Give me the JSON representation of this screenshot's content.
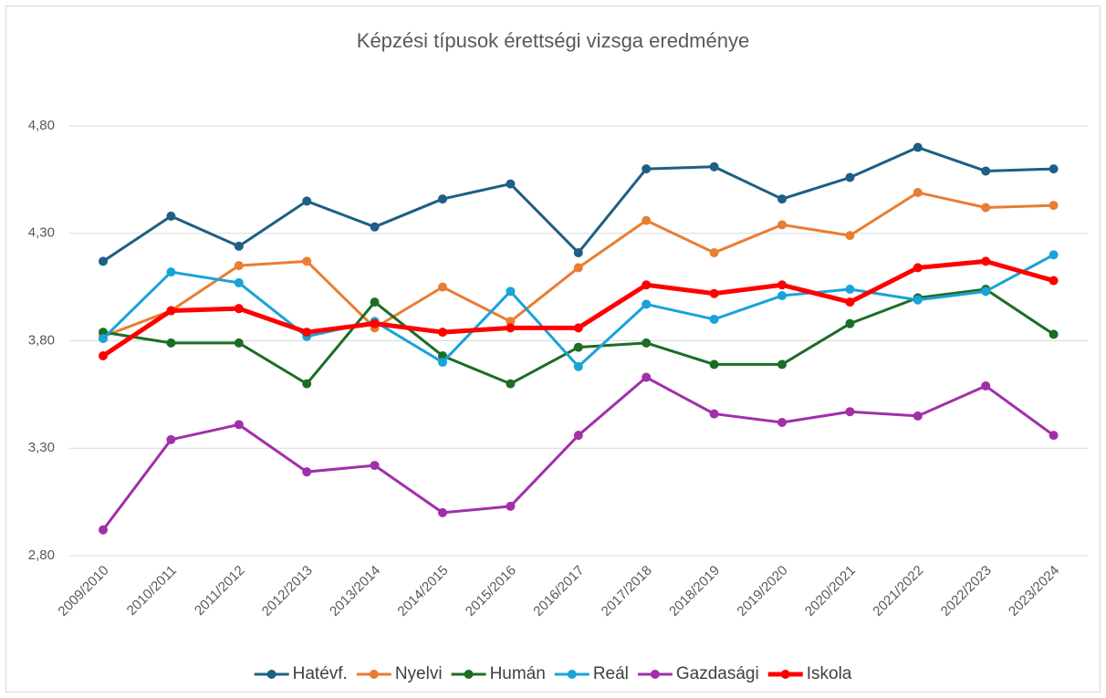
{
  "chart_data": {
    "type": "line",
    "title": "Képzési típusok érettségi vizsga eredménye",
    "categories": [
      "2009/2010",
      "2010/2011",
      "2011/2012",
      "2012/2013",
      "2013/2014",
      "2014/2015",
      "2015/2016",
      "2016/2017",
      "2017/2018",
      "2018/2019",
      "2019/2020",
      "2020/2021",
      "2021/2022",
      "2022/2023",
      "2023/2024"
    ],
    "series": [
      {
        "name": "Hatévf.",
        "color": "#1d5f85",
        "width": 3,
        "values": [
          4.17,
          4.38,
          4.24,
          4.45,
          4.33,
          4.46,
          4.53,
          4.21,
          4.6,
          4.61,
          4.46,
          4.56,
          4.7,
          4.59,
          4.6
        ]
      },
      {
        "name": "Nyelvi",
        "color": "#e97d32",
        "width": 3,
        "values": [
          3.82,
          3.94,
          4.15,
          4.17,
          3.86,
          4.05,
          3.89,
          4.14,
          4.36,
          4.21,
          4.34,
          4.29,
          4.49,
          4.42,
          4.43
        ]
      },
      {
        "name": "Humán",
        "color": "#1c6d26",
        "width": 3,
        "values": [
          3.84,
          3.79,
          3.79,
          3.6,
          3.98,
          3.73,
          3.6,
          3.77,
          3.79,
          3.69,
          3.69,
          3.88,
          4.0,
          4.04,
          3.83
        ]
      },
      {
        "name": "Reál",
        "color": "#19a3d9",
        "width": 3,
        "values": [
          3.81,
          4.12,
          4.07,
          3.82,
          3.89,
          3.7,
          4.03,
          3.68,
          3.97,
          3.9,
          4.01,
          4.04,
          3.99,
          4.03,
          4.2
        ]
      },
      {
        "name": "Gazdasági",
        "color": "#a12fa9",
        "width": 3,
        "values": [
          2.92,
          3.34,
          3.41,
          3.19,
          3.22,
          3.0,
          3.03,
          3.36,
          3.63,
          3.46,
          3.42,
          3.47,
          3.45,
          3.59,
          3.36
        ]
      },
      {
        "name": "Iskola",
        "color": "#ff0000",
        "width": 5,
        "values": [
          3.73,
          3.94,
          3.95,
          3.84,
          3.88,
          3.84,
          3.86,
          3.86,
          4.06,
          4.02,
          4.06,
          3.98,
          4.14,
          4.17,
          4.08
        ]
      }
    ],
    "ylim": [
      2.8,
      4.8
    ],
    "yticks": [
      {
        "value": 2.8,
        "label": "2,80"
      },
      {
        "value": 3.3,
        "label": "3,30"
      },
      {
        "value": 3.8,
        "label": "3,80"
      },
      {
        "value": 4.3,
        "label": "4,30"
      },
      {
        "value": 4.8,
        "label": "4,80"
      }
    ],
    "grid": true,
    "legend": "bottom"
  }
}
